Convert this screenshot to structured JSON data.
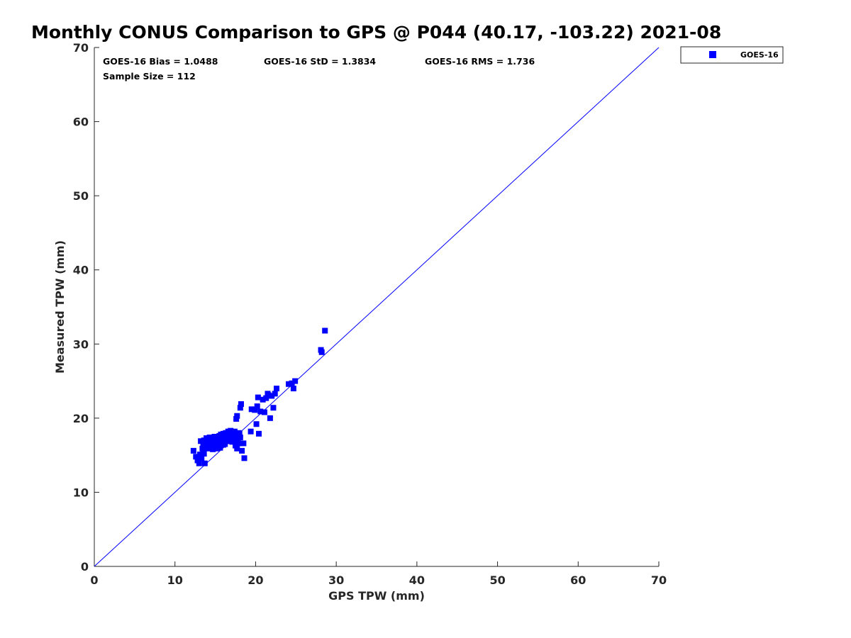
{
  "chart_data": {
    "type": "scatter",
    "title": "Monthly CONUS Comparison to GPS @ P044 (40.17, -103.22) 2021-08",
    "xlabel": "GPS TPW (mm)",
    "ylabel": "Measured TPW (mm)",
    "xlim": [
      0,
      70
    ],
    "ylim": [
      0,
      70
    ],
    "xticks": [
      0,
      10,
      20,
      30,
      40,
      50,
      60,
      70
    ],
    "yticks": [
      0,
      10,
      20,
      30,
      40,
      50,
      60,
      70
    ],
    "grid": false,
    "legend_position": "outside-top-right",
    "reference_line": {
      "from": [
        0,
        0
      ],
      "to": [
        70,
        70
      ],
      "color": "#0000ff"
    },
    "stats": {
      "bias": "GOES-16 Bias = 1.0488",
      "std": "GOES-16 StD = 1.3834",
      "rms": "GOES-16 RMS = 1.736",
      "sample_size": "Sample Size = 112"
    },
    "series": [
      {
        "name": "GOES-16",
        "color": "#0000ff",
        "marker": "square",
        "points": [
          [
            12.3,
            15.6
          ],
          [
            12.6,
            14.8
          ],
          [
            12.8,
            14.3
          ],
          [
            13.0,
            13.9
          ],
          [
            13.1,
            15.1
          ],
          [
            13.3,
            14.6
          ],
          [
            13.4,
            15.9
          ],
          [
            13.5,
            16.6
          ],
          [
            13.6,
            15.2
          ],
          [
            13.7,
            13.9
          ],
          [
            13.8,
            16.2
          ],
          [
            13.9,
            17.3
          ],
          [
            14.0,
            16.0
          ],
          [
            14.1,
            16.8
          ],
          [
            14.2,
            15.9
          ],
          [
            14.3,
            16.5
          ],
          [
            14.4,
            17.2
          ],
          [
            14.5,
            16.1
          ],
          [
            14.6,
            16.9
          ],
          [
            14.7,
            15.8
          ],
          [
            14.8,
            16.4
          ],
          [
            14.9,
            17.5
          ],
          [
            15.0,
            16.2
          ],
          [
            15.1,
            16.7
          ],
          [
            15.2,
            15.9
          ],
          [
            15.3,
            17.0
          ],
          [
            15.4,
            16.3
          ],
          [
            15.5,
            17.6
          ],
          [
            15.6,
            16.0
          ],
          [
            15.7,
            16.8
          ],
          [
            15.8,
            17.3
          ],
          [
            15.9,
            16.5
          ],
          [
            16.0,
            17.9
          ],
          [
            16.1,
            16.7
          ],
          [
            16.2,
            17.4
          ],
          [
            16.3,
            18.0
          ],
          [
            16.4,
            17.1
          ],
          [
            16.5,
            16.9
          ],
          [
            16.6,
            18.2
          ],
          [
            16.7,
            17.6
          ],
          [
            16.8,
            17.0
          ],
          [
            16.9,
            18.3
          ],
          [
            17.0,
            17.8
          ],
          [
            17.1,
            16.8
          ],
          [
            17.2,
            18.1
          ],
          [
            17.3,
            17.5
          ],
          [
            17.4,
            18.2
          ],
          [
            17.5,
            16.3
          ],
          [
            17.6,
            17.7
          ],
          [
            17.7,
            15.9
          ],
          [
            17.8,
            17.2
          ],
          [
            17.9,
            18.0
          ],
          [
            18.0,
            16.6
          ],
          [
            18.1,
            17.4
          ],
          [
            18.3,
            15.6
          ],
          [
            18.5,
            16.6
          ],
          [
            18.6,
            14.6
          ],
          [
            17.6,
            19.9
          ],
          [
            17.7,
            20.3
          ],
          [
            18.1,
            21.4
          ],
          [
            18.2,
            21.9
          ],
          [
            19.4,
            18.2
          ],
          [
            19.5,
            21.2
          ],
          [
            19.9,
            21.1
          ],
          [
            20.1,
            19.2
          ],
          [
            20.2,
            21.6
          ],
          [
            20.3,
            22.8
          ],
          [
            20.4,
            17.9
          ],
          [
            20.6,
            20.9
          ],
          [
            20.9,
            22.5
          ],
          [
            21.1,
            20.8
          ],
          [
            21.3,
            22.7
          ],
          [
            21.5,
            23.3
          ],
          [
            21.6,
            23.1
          ],
          [
            21.8,
            20.0
          ],
          [
            22.0,
            23.0
          ],
          [
            22.2,
            21.4
          ],
          [
            22.4,
            23.3
          ],
          [
            22.6,
            24.0
          ],
          [
            24.1,
            24.6
          ],
          [
            24.5,
            24.7
          ],
          [
            24.7,
            24.0
          ],
          [
            24.9,
            25.0
          ],
          [
            28.1,
            29.2
          ],
          [
            28.2,
            28.9
          ],
          [
            28.6,
            31.8
          ],
          [
            13.2,
            16.9
          ],
          [
            13.6,
            17.0
          ],
          [
            14.3,
            17.4
          ],
          [
            14.8,
            17.0
          ],
          [
            15.3,
            16.1
          ],
          [
            15.7,
            17.8
          ],
          [
            16.2,
            16.5
          ],
          [
            16.6,
            17.3
          ],
          [
            16.9,
            16.9
          ],
          [
            17.2,
            17.6
          ],
          [
            17.5,
            17.9
          ],
          [
            17.8,
            16.9
          ],
          [
            15.0,
            17.2
          ],
          [
            14.6,
            16.0
          ],
          [
            14.1,
            16.3
          ],
          [
            13.9,
            16.8
          ],
          [
            15.5,
            16.6
          ],
          [
            16.3,
            17.6
          ],
          [
            16.8,
            18.0
          ],
          [
            17.4,
            17.0
          ],
          [
            15.9,
            17.1
          ],
          [
            14.4,
            16.6
          ],
          [
            13.5,
            15.4
          ],
          [
            18.0,
            17.9
          ],
          [
            16.0,
            16.4
          ],
          [
            15.2,
            16.9
          ]
        ]
      }
    ]
  }
}
